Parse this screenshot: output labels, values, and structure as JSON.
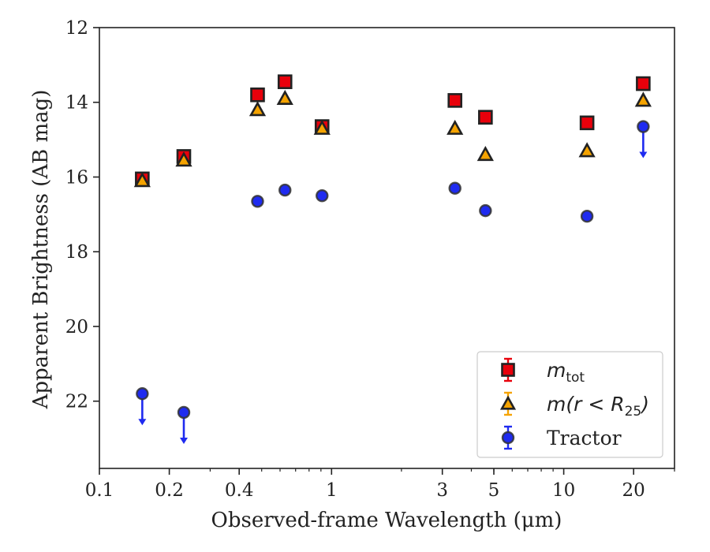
{
  "chart_data": {
    "type": "scatter",
    "title": "",
    "xlabel": "Observed-frame Wavelength (μm)",
    "ylabel": "Apparent Brightness (AB mag)",
    "xscale": "log",
    "xlim": [
      0.1,
      30
    ],
    "ylim": [
      23.8,
      12
    ],
    "y_inverted": true,
    "grid": false,
    "legend_position": "bottom-right",
    "xticks": [
      {
        "value": 0.1,
        "label": "0.1"
      },
      {
        "value": 0.2,
        "label": "0.2"
      },
      {
        "value": 0.4,
        "label": "0.4"
      },
      {
        "value": 1,
        "label": "1"
      },
      {
        "value": 3,
        "label": "3"
      },
      {
        "value": 5,
        "label": "5"
      },
      {
        "value": 10,
        "label": "10"
      },
      {
        "value": 20,
        "label": "20"
      }
    ],
    "yticks": [
      {
        "value": 12,
        "label": "12"
      },
      {
        "value": 14,
        "label": "14"
      },
      {
        "value": 16,
        "label": "16"
      },
      {
        "value": 18,
        "label": "18"
      },
      {
        "value": 20,
        "label": "20"
      },
      {
        "value": 22,
        "label": "22"
      }
    ],
    "series": [
      {
        "name": "m_tot",
        "legend_main": "m",
        "legend_sub": "tot",
        "marker": "square",
        "color": "#e8000b",
        "edge_color": "#222222",
        "points": [
          {
            "x": 0.153,
            "y": 16.05
          },
          {
            "x": 0.231,
            "y": 15.45
          },
          {
            "x": 0.48,
            "y": 13.8
          },
          {
            "x": 0.63,
            "y": 13.45
          },
          {
            "x": 0.91,
            "y": 14.65
          },
          {
            "x": 3.4,
            "y": 13.95
          },
          {
            "x": 4.6,
            "y": 14.4
          },
          {
            "x": 12.6,
            "y": 14.55
          },
          {
            "x": 22.0,
            "y": 13.5
          }
        ]
      },
      {
        "name": "m(r < R25)",
        "legend_main": "m(r < R",
        "legend_sub": "25",
        "legend_close": ")",
        "marker": "triangle",
        "color": "#f5a300",
        "edge_color": "#222222",
        "points": [
          {
            "x": 0.153,
            "y": 16.1
          },
          {
            "x": 0.231,
            "y": 15.55
          },
          {
            "x": 0.48,
            "y": 14.2
          },
          {
            "x": 0.63,
            "y": 13.9
          },
          {
            "x": 0.91,
            "y": 14.7
          },
          {
            "x": 3.4,
            "y": 14.7
          },
          {
            "x": 4.6,
            "y": 15.4
          },
          {
            "x": 12.6,
            "y": 15.3
          },
          {
            "x": 22.0,
            "y": 13.95
          }
        ]
      },
      {
        "name": "Tractor",
        "legend_main": "Tractor",
        "marker": "circle",
        "color": "#1f2bf0",
        "edge_color": "#333333",
        "points": [
          {
            "x": 0.153,
            "y": 21.8,
            "upper_limit": true
          },
          {
            "x": 0.231,
            "y": 22.3,
            "upper_limit": true
          },
          {
            "x": 0.48,
            "y": 16.65
          },
          {
            "x": 0.63,
            "y": 16.35
          },
          {
            "x": 0.91,
            "y": 16.5
          },
          {
            "x": 3.4,
            "y": 16.3
          },
          {
            "x": 4.6,
            "y": 16.9
          },
          {
            "x": 12.6,
            "y": 17.05
          },
          {
            "x": 22.0,
            "y": 14.65,
            "upper_limit": true
          }
        ]
      }
    ]
  }
}
